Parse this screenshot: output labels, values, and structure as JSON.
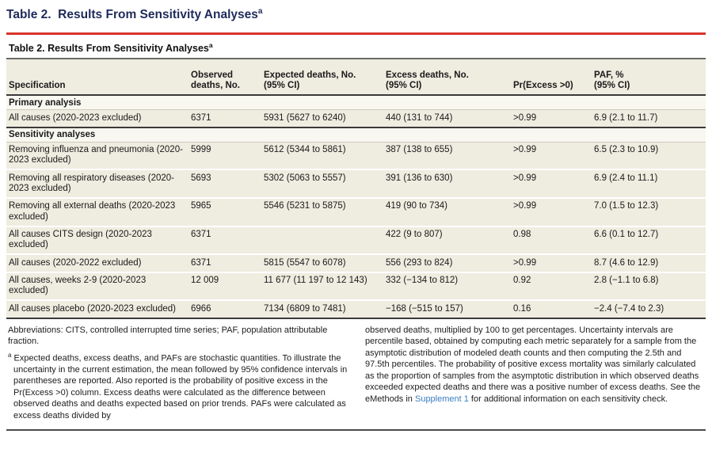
{
  "page": {
    "outer_title": "Table 2.  Results From Sensitivity Analyses",
    "outer_title_sup": "a"
  },
  "colors": {
    "accent_red": "#d8342a",
    "title_navy": "#1e2a5a",
    "row_cream": "#efece0",
    "section_bg": "#f8f7f0",
    "link_blue": "#3a7dbf"
  },
  "table": {
    "title": "Table 2. Results From Sensitivity Analyses",
    "title_sup": "a",
    "columns": [
      {
        "lines": [
          "Specification"
        ]
      },
      {
        "lines": [
          "Observed",
          "deaths, No."
        ]
      },
      {
        "lines": [
          "Expected deaths, No.",
          "(95% CI)"
        ]
      },
      {
        "lines": [
          "Excess deaths, No.",
          "(95% CI)"
        ]
      },
      {
        "lines": [
          "Pr(Excess >0)"
        ]
      },
      {
        "lines": [
          "PAF, %",
          "(95% CI)"
        ]
      }
    ],
    "sections": [
      {
        "label": "Primary analysis",
        "rows": [
          [
            "All causes (2020-2023 excluded)",
            "6371",
            "5931 (5627 to 6240)",
            "440 (131 to 744)",
            ">0.99",
            "6.9 (2.1 to 11.7)"
          ]
        ]
      },
      {
        "label": "Sensitivity analyses",
        "rows": [
          [
            "Removing influenza and pneumonia (2020-2023 excluded)",
            "5999",
            "5612 (5344 to 5861)",
            "387 (138 to 655)",
            ">0.99",
            "6.5 (2.3 to 10.9)"
          ],
          [
            "Removing all respiratory diseases (2020-2023 excluded)",
            "5693",
            "5302 (5063 to 5557)",
            "391 (136 to 630)",
            ">0.99",
            "6.9 (2.4 to 11.1)"
          ],
          [
            "Removing all external deaths (2020-2023 excluded)",
            "5965",
            "5546 (5231 to 5875)",
            "419 (90 to 734)",
            ">0.99",
            "7.0 (1.5 to 12.3)"
          ],
          [
            "All causes CITS design (2020-2023 excluded)",
            "6371",
            "",
            "422 (9 to 807)",
            "0.98",
            "6.6 (0.1 to 12.7)"
          ],
          [
            "All causes (2020-2022 excluded)",
            "6371",
            "5815 (5547 to 6078)",
            "556 (293 to 824)",
            ">0.99",
            "8.7 (4.6 to 12.9)"
          ],
          [
            "All causes, weeks 2-9 (2020-2023 excluded)",
            "12 009",
            "11 677 (11 197 to 12 143)",
            "332 (−134 to 812)",
            "0.92",
            "2.8 (−1.1 to 6.8)"
          ],
          [
            "All causes placebo (2020-2023 excluded)",
            "6966",
            "7134 (6809 to 7481)",
            "−168 (−515 to 157)",
            "0.16",
            "−2.4 (−7.4 to 2.3)"
          ]
        ]
      }
    ]
  },
  "footnotes": {
    "left": {
      "abbreviations": "Abbreviations: CITS, controlled interrupted time series; PAF, population attributable fraction.",
      "note_marker": "a",
      "note_text": "Expected deaths, excess deaths, and PAFs are stochastic quantities. To illustrate the uncertainty in the current estimation, the mean followed by 95% confidence intervals in parentheses are reported. Also reported is the probability of positive excess in the Pr(Excess >0) column. Excess deaths were calculated as the difference between observed deaths and deaths expected based on prior trends. PAFs were calculated as excess deaths divided by"
    },
    "right": {
      "text_before_link": "observed deaths, multiplied by 100 to get percentages. Uncertainty intervals are percentile based, obtained by computing each metric separately for a sample from the asymptotic distribution of modeled death counts and then computing the 2.5th and 97.5th percentiles. The probability of positive excess mortality was similarly calculated as the proportion of samples from the asymptotic distribution in which observed deaths exceeded expected deaths and there was a positive number of excess deaths. See the eMethods in ",
      "link_text": "Supplement 1",
      "text_after_link": " for additional information on each sensitivity check."
    }
  }
}
